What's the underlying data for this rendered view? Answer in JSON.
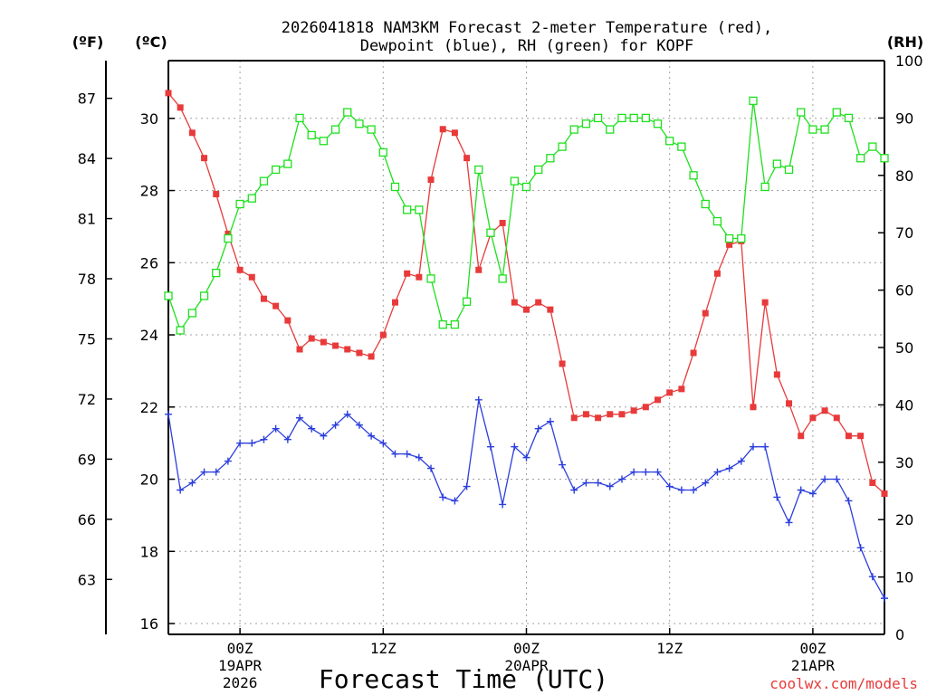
{
  "chart_data": {
    "type": "line",
    "title_line1": "2026041818 NAM3KM Forecast 2-meter Temperature (red),",
    "title_line2": "Dewpoint (blue), RH (green) for KOPF",
    "xlabel": "Forecast Time (UTC)",
    "credit": "coolwx.com/models",
    "unit_f": "(ºF)",
    "unit_c": "(ºC)",
    "unit_rh": "(RH)",
    "x_range_hours": [
      0,
      60
    ],
    "c_range": [
      15.7,
      31.6
    ],
    "rh_range": [
      0,
      100
    ],
    "f_ticks": [
      "63",
      "66",
      "69",
      "72",
      "75",
      "78",
      "81",
      "84",
      "87"
    ],
    "c_ticks": [
      "16",
      "18",
      "20",
      "22",
      "24",
      "26",
      "28",
      "30"
    ],
    "rh_ticks": [
      "0",
      "10",
      "20",
      "30",
      "40",
      "50",
      "60",
      "70",
      "80",
      "90",
      "100"
    ],
    "x_ticks": [
      {
        "hour": 6,
        "label": "00Z",
        "sub1": "19APR",
        "sub2": "2026"
      },
      {
        "hour": 18,
        "label": "12Z",
        "sub1": "",
        "sub2": ""
      },
      {
        "hour": 30,
        "label": "00Z",
        "sub1": "20APR",
        "sub2": ""
      },
      {
        "hour": 42,
        "label": "12Z",
        "sub1": "",
        "sub2": ""
      },
      {
        "hour": 54,
        "label": "00Z",
        "sub1": "21APR",
        "sub2": ""
      }
    ],
    "series": [
      {
        "name": "2-meter Temperature (ºC)",
        "color": "#e83a3a",
        "marker": "filled-square",
        "axis": "c",
        "values": [
          30.7,
          30.3,
          29.6,
          28.9,
          27.9,
          26.8,
          25.8,
          25.6,
          25.0,
          24.8,
          24.4,
          23.6,
          23.9,
          23.8,
          23.7,
          23.6,
          23.5,
          23.4,
          24.0,
          24.9,
          25.7,
          25.6,
          28.3,
          29.7,
          29.6,
          28.9,
          25.8,
          26.8,
          27.1,
          24.9,
          24.7,
          24.9,
          24.7,
          23.2,
          21.7,
          21.8,
          21.7,
          21.8,
          21.8,
          21.9,
          22.0,
          22.2,
          22.4,
          22.5,
          23.5,
          24.6,
          25.7,
          26.5,
          26.6,
          22.0,
          24.9,
          22.9,
          22.1,
          21.2,
          21.7,
          21.9,
          21.7,
          21.2,
          21.2,
          19.9,
          19.6
        ]
      },
      {
        "name": "Dewpoint (ºC)",
        "color": "#2c3fdc",
        "marker": "plus",
        "axis": "c",
        "values": [
          21.8,
          19.7,
          19.9,
          20.2,
          20.2,
          20.5,
          21.0,
          21.0,
          21.1,
          21.4,
          21.1,
          21.7,
          21.4,
          21.2,
          21.5,
          21.8,
          21.5,
          21.2,
          21.0,
          20.7,
          20.7,
          20.6,
          20.3,
          19.5,
          19.4,
          19.8,
          22.2,
          20.9,
          19.3,
          20.9,
          20.6,
          21.4,
          21.6,
          20.4,
          19.7,
          19.9,
          19.9,
          19.8,
          20.0,
          20.2,
          20.2,
          20.2,
          19.8,
          19.7,
          19.7,
          19.9,
          20.2,
          20.3,
          20.5,
          20.9,
          20.9,
          19.5,
          18.8,
          19.7,
          19.6,
          20.0,
          20.0,
          19.4,
          18.1,
          17.3,
          16.7
        ]
      },
      {
        "name": "RH (%)",
        "color": "#1ee01e",
        "marker": "open-square",
        "axis": "rh",
        "values": [
          59,
          53,
          56,
          59,
          63,
          69,
          75,
          76,
          79,
          81,
          82,
          90,
          87,
          86,
          88,
          91,
          89,
          88,
          84,
          78,
          74,
          74,
          62,
          54,
          54,
          58,
          81,
          70,
          62,
          79,
          78,
          81,
          83,
          85,
          88,
          89,
          90,
          88,
          90,
          90,
          90,
          89,
          86,
          85,
          80,
          75,
          72,
          69,
          69,
          93,
          78,
          82,
          81,
          91,
          88,
          88,
          91,
          90,
          83,
          85,
          83
        ]
      }
    ]
  }
}
